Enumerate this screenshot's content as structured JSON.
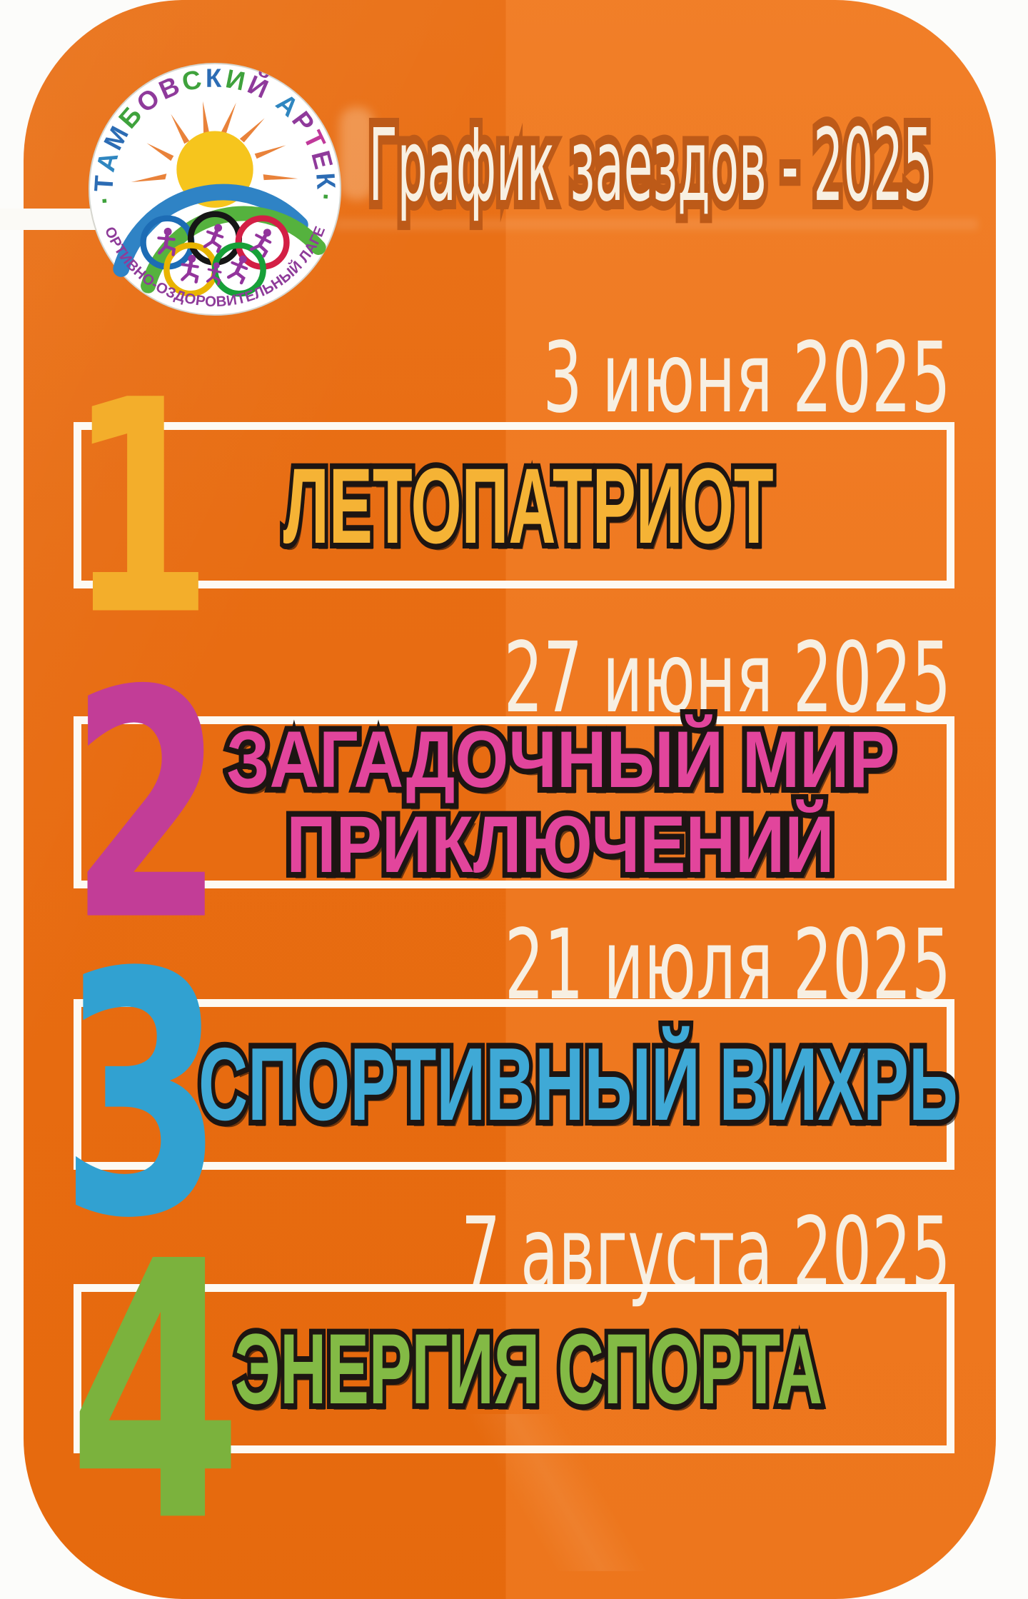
{
  "poster": {
    "title": "График заездов - 2025",
    "card_color": "#ee7013",
    "title_fill": "#f8f0e2",
    "title_outline": "#bd5a18",
    "date_color": "#f7efe2",
    "box_border_color": "#fdfaf3"
  },
  "logo": {
    "name": "Тамбовский Артек",
    "arc_top_letters": [
      {
        "ch": "·",
        "color": "#3fa23c"
      },
      {
        "ch": "Т",
        "color": "#2c6cb4"
      },
      {
        "ch": "А",
        "color": "#2f86c0"
      },
      {
        "ch": "М",
        "color": "#2c6cb4"
      },
      {
        "ch": "Б",
        "color": "#3fa23c"
      },
      {
        "ch": "О",
        "color": "#8f3a9b"
      },
      {
        "ch": "В",
        "color": "#8f3a9b"
      },
      {
        "ch": "С",
        "color": "#3fa23c"
      },
      {
        "ch": "К",
        "color": "#2c6cb4"
      },
      {
        "ch": "И",
        "color": "#3fa23c"
      },
      {
        "ch": "Й",
        "color": "#8f3a9b"
      },
      {
        "ch": " ",
        "color": "#8f3a9b"
      },
      {
        "ch": "А",
        "color": "#2f86c0"
      },
      {
        "ch": "Р",
        "color": "#8f3a9b"
      },
      {
        "ch": "Т",
        "color": "#c0399a"
      },
      {
        "ch": "Е",
        "color": "#8f3a9b"
      },
      {
        "ch": "К",
        "color": "#2c6cb4"
      },
      {
        "ch": "·",
        "color": "#3fa23c"
      }
    ],
    "arc_bottom_text": "СПОРТИВНО-ОЗДОРОВИТЕЛЬНЫЙ ЛАГЕРЬ",
    "arc_bottom_color": "#8e3b99",
    "sun_color": "#f6c51d",
    "ray_color": "#e8782a",
    "arc_blue": "#2f83c5",
    "arc_green": "#55b23e",
    "ring_colors": [
      "#1d6cb5",
      "#161616",
      "#d31f45",
      "#e9b400",
      "#17a038"
    ],
    "figure_color": "#93349c"
  },
  "sessions": [
    {
      "number": "1",
      "date": "3 июня 2025",
      "name_lines": [
        "ЛЕТОПАТРИОТ"
      ],
      "accent": "#f3ae2b",
      "name_fill": "#f5b335"
    },
    {
      "number": "2",
      "date": "27 июня 2025",
      "name_lines": [
        "ЗАГАДОЧНЫЙ МИР",
        "ПРИКЛЮЧЕНИЙ"
      ],
      "accent": "#c23d97",
      "name_fill": "#e2459c"
    },
    {
      "number": "3",
      "date": "21 июля 2025",
      "name_lines": [
        "СПОРТИВНЫЙ ВИХРЬ"
      ],
      "accent": "#31a1d1",
      "name_fill": "#3fa9d6"
    },
    {
      "number": "4",
      "date": "7 августа 2025",
      "name_lines": [
        "ЭНЕРГИЯ СПОРТА"
      ],
      "accent": "#7bb23d",
      "name_fill": "#83ba45"
    }
  ]
}
